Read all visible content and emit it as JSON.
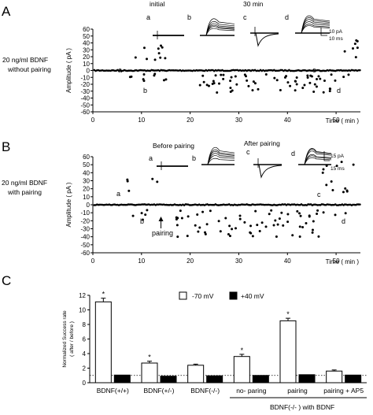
{
  "figure": {
    "panels": {
      "A": "A",
      "B": "B",
      "C": "C"
    },
    "panel_a": {
      "condition_line1": "20 ng/ml BDNF",
      "condition_line2": "without pairing",
      "inset_left_title": "initial",
      "inset_right_title": "30 min",
      "inset_letters": [
        "a",
        "b",
        "c",
        "d"
      ],
      "scale_pa": "10 pA",
      "scale_ms": "10 ms",
      "point_letters": {
        "a": "a",
        "b": "b",
        "c": "c",
        "d": "d"
      }
    },
    "panel_b": {
      "condition_line1": "20 ng/ml BDNF",
      "condition_line2": "with pairing",
      "inset_left_title": "Before pairing",
      "inset_right_title": "After pairing",
      "inset_letters": [
        "a",
        "b",
        "c",
        "d"
      ],
      "scale_pa": "15 pA",
      "scale_ms": "15 ms",
      "arrow_label": "pairing",
      "point_letters": {
        "a": "a",
        "b": "b",
        "c": "c",
        "d": "d"
      }
    },
    "panel_c": {
      "group_label": "BDNF(-/- ) with BDNF"
    }
  },
  "chart_data": [
    {
      "type": "scatter",
      "panel": "A",
      "ylabel": "Amplitude ( pA )",
      "xlabel": "Time ( min )",
      "xlim": [
        0,
        55
      ],
      "ylim": [
        -60,
        60
      ],
      "xticks": [
        0,
        10,
        20,
        30,
        40,
        50
      ],
      "yticks": [
        -60,
        -50,
        -40,
        -30,
        -20,
        -10,
        0,
        10,
        20,
        30,
        40,
        50,
        60
      ],
      "regions": [
        {
          "t": [
            7,
            15.5
          ],
          "success_range": [
            15,
            38
          ],
          "failure_range": [
            -15,
            -5
          ],
          "failure_fraction": 0.45
        },
        {
          "t": [
            22,
            50
          ],
          "success_range": null,
          "failure_range": [
            -32,
            -5
          ],
          "failure_fraction": 0.5
        },
        {
          "t": [
            50.5,
            55
          ],
          "success_range": [
            18,
            48
          ],
          "failure_range": [
            -15,
            -5
          ],
          "failure_fraction": 0.4
        }
      ]
    },
    {
      "type": "scatter",
      "panel": "B",
      "ylabel": "Amplitude ( pA )",
      "xlabel": "Time ( min )",
      "xlim": [
        0,
        55
      ],
      "ylim": [
        -60,
        60
      ],
      "xticks": [
        0,
        10,
        20,
        30,
        40,
        50
      ],
      "yticks": [
        -60,
        -50,
        -40,
        -30,
        -20,
        -10,
        0,
        10,
        20,
        30,
        40,
        50,
        60
      ],
      "pairing_time": 14,
      "regions": [
        {
          "t": [
            7,
            14
          ],
          "success_range": [
            15,
            35
          ],
          "failure_range": [
            -20,
            -5
          ],
          "failure_fraction": 0.45
        },
        {
          "t": [
            17,
            47
          ],
          "success_range": null,
          "failure_range": [
            -40,
            -5
          ],
          "failure_fraction": 0.55
        },
        {
          "t": [
            47,
            55
          ],
          "success_range": [
            15,
            55
          ],
          "failure_range": [
            -15,
            -5
          ],
          "failure_fraction": 0.4
        }
      ]
    },
    {
      "type": "bar",
      "panel": "C",
      "ylabel_line1": "Normalized Success rate",
      "ylabel_line2": "( after / before )",
      "ylim": [
        0,
        12
      ],
      "yticks": [
        0,
        2,
        4,
        6,
        8,
        10,
        12
      ],
      "categories": [
        "BDNF(+/+)",
        "BDNF(+/-)",
        "BDNF(-/-)",
        "no- paring",
        "pairing",
        "pairing + AP5"
      ],
      "series": [
        {
          "name": "-70 mV",
          "color": "#ffffff",
          "values": [
            11.1,
            2.7,
            2.4,
            3.6,
            8.5,
            1.6
          ],
          "errors": [
            0.5,
            0.25,
            0.15,
            0.3,
            0.35,
            0.15
          ]
        },
        {
          "name": "+40 mV",
          "color": "#000000",
          "values": [
            1.05,
            0.9,
            0.95,
            1.0,
            1.1,
            1.05
          ],
          "errors": [
            0,
            0,
            0,
            0,
            0,
            0
          ]
        }
      ],
      "significance": [
        "*",
        "*",
        "",
        "*",
        "*",
        ""
      ],
      "reference_line": 1
    }
  ]
}
